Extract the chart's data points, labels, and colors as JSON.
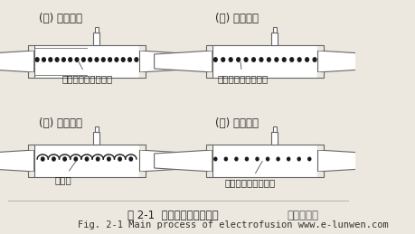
{
  "title_zh": "图 2-1  电燔焊接的主要工艺",
  "title_en": "Fig. 2-1 Main process of electrofusion w",
  "watermark": "ww.e-lunwen.com",
  "watermark2": "上海论文网",
  "bg_color": "#ede8df",
  "label1": "(１) 准备阶段",
  "label2": "(２) 定位阶段",
  "label3": "(３) 焊接阶段",
  "label4": "(４) 保持阶段",
  "ann1": "套筒和管材间隙均匀",
  "ann2": "套筒和管材轴线重合",
  "ann3": "燔融区",
  "ann4": "套筒和管材融为一体",
  "line_color": "#666666",
  "dot_color": "#1a1a1a",
  "figsize": [
    4.59,
    2.59
  ],
  "dpi": 100
}
